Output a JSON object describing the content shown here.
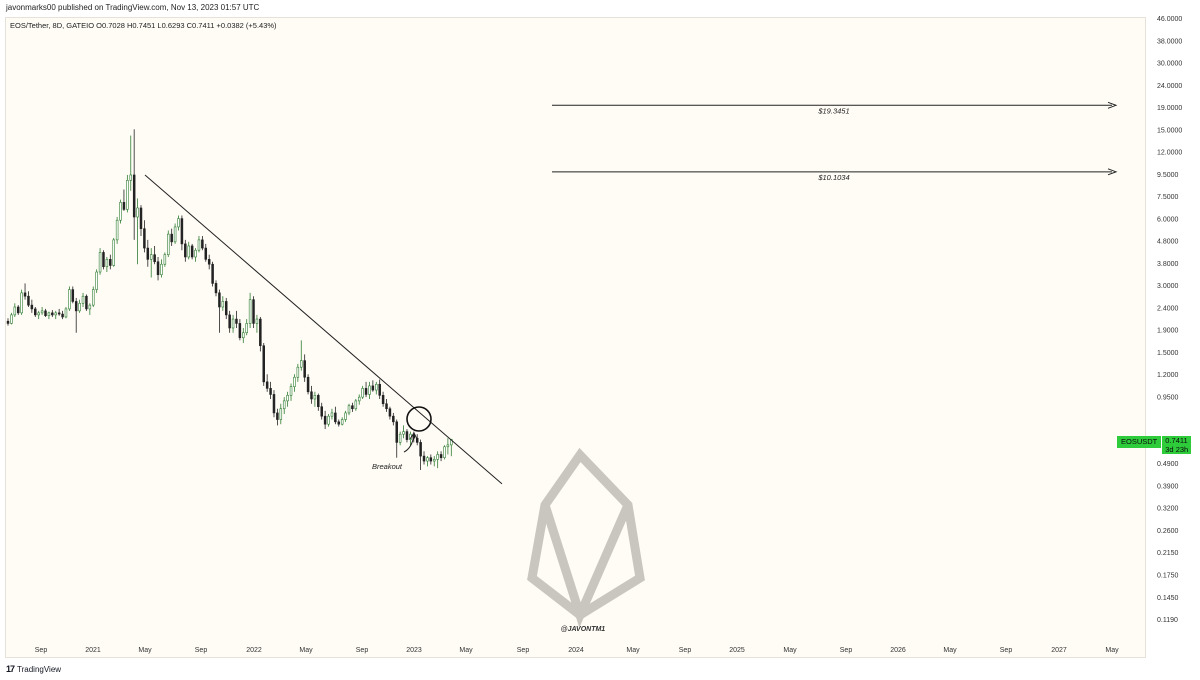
{
  "header": {
    "publisher": "javonmarks00 published on TradingView.com, Nov 13, 2023 01:57 UTC",
    "symbol_line": "EOS/Tether, 8D, GATEIO  O0.7028  H0.7451  L0.6293  C0.7411  +0.0382 (+5.43%)"
  },
  "footer": {
    "logo_glyph": "17",
    "brand": "TradingView"
  },
  "last_price_badge": {
    "symbol": "EOSUSDT",
    "price": "0.7411",
    "countdown": "3d 23h",
    "color": "#2ecc3a"
  },
  "chart_data": {
    "type": "candlestick",
    "scale": "log",
    "y_tick_labels": [
      "46.0000",
      "38.0000",
      "30.0000",
      "24.0000",
      "19.0000",
      "15.0000",
      "12.0000",
      "9.5000",
      "7.5000",
      "6.0000",
      "4.8000",
      "3.8000",
      "3.0000",
      "2.4000",
      "1.9000",
      "1.5000",
      "1.2000",
      "0.9500",
      "0.7411",
      "0.6100",
      "0.4900",
      "0.3900",
      "0.3200",
      "0.2600",
      "0.2150",
      "0.1750",
      "0.1450",
      "0.1190"
    ],
    "x_tick_labels": [
      "Sep",
      "2021",
      "May",
      "Sep",
      "2022",
      "May",
      "Sep",
      "2023",
      "May",
      "Sep",
      "2024",
      "May",
      "Sep",
      "2025",
      "May",
      "Sep",
      "2026",
      "May",
      "Sep",
      "2027",
      "May"
    ],
    "x_range": [
      "2020-08",
      "2027-06"
    ],
    "ohlc_8d": [
      [
        2.35,
        2.42,
        2.25,
        2.3
      ],
      [
        2.3,
        2.55,
        2.28,
        2.5
      ],
      [
        2.5,
        2.8,
        2.45,
        2.7
      ],
      [
        2.7,
        2.75,
        2.5,
        2.55
      ],
      [
        2.55,
        3.2,
        2.5,
        3.1
      ],
      [
        3.1,
        3.4,
        2.9,
        3.0
      ],
      [
        3.0,
        3.15,
        2.7,
        2.75
      ],
      [
        2.75,
        2.9,
        2.55,
        2.65
      ],
      [
        2.65,
        2.7,
        2.45,
        2.5
      ],
      [
        2.5,
        2.6,
        2.4,
        2.55
      ],
      [
        2.55,
        2.7,
        2.5,
        2.6
      ],
      [
        2.6,
        2.65,
        2.45,
        2.48
      ],
      [
        2.48,
        2.58,
        2.4,
        2.55
      ],
      [
        2.55,
        2.62,
        2.45,
        2.5
      ],
      [
        2.5,
        2.6,
        2.4,
        2.55
      ],
      [
        2.55,
        2.65,
        2.48,
        2.52
      ],
      [
        2.52,
        2.6,
        2.4,
        2.45
      ],
      [
        2.45,
        2.7,
        2.42,
        2.65
      ],
      [
        2.65,
        3.3,
        2.6,
        3.2
      ],
      [
        3.2,
        3.3,
        2.8,
        2.85
      ],
      [
        2.85,
        2.95,
        2.1,
        2.6
      ],
      [
        2.6,
        2.9,
        2.55,
        2.8
      ],
      [
        2.8,
        3.1,
        2.7,
        3.0
      ],
      [
        3.0,
        3.05,
        2.6,
        2.65
      ],
      [
        2.65,
        2.8,
        2.5,
        2.75
      ],
      [
        2.75,
        3.3,
        2.7,
        3.2
      ],
      [
        3.2,
        3.9,
        3.1,
        3.8
      ],
      [
        3.8,
        4.8,
        3.7,
        4.6
      ],
      [
        4.6,
        4.7,
        3.9,
        4.0
      ],
      [
        4.0,
        4.4,
        3.8,
        4.3
      ],
      [
        4.3,
        4.5,
        3.9,
        4.05
      ],
      [
        4.05,
        5.3,
        4.0,
        5.2
      ],
      [
        5.2,
        6.5,
        5.0,
        6.3
      ],
      [
        6.3,
        7.7,
        6.1,
        7.5
      ],
      [
        7.5,
        8.5,
        6.9,
        7.0
      ],
      [
        7.0,
        9.8,
        6.8,
        9.3
      ],
      [
        9.3,
        14.4,
        8.4,
        9.8
      ],
      [
        9.8,
        15.3,
        5.2,
        6.5
      ],
      [
        6.5,
        7.8,
        4.1,
        7.1
      ],
      [
        7.1,
        7.3,
        5.4,
        5.8
      ],
      [
        5.8,
        6.3,
        4.6,
        4.8
      ],
      [
        4.8,
        5.2,
        4.0,
        4.3
      ],
      [
        4.3,
        4.8,
        3.6,
        4.5
      ],
      [
        4.5,
        4.9,
        4.1,
        4.2
      ],
      [
        4.2,
        4.4,
        3.5,
        3.7
      ],
      [
        3.7,
        4.3,
        3.6,
        4.1
      ],
      [
        4.1,
        4.6,
        4.0,
        4.5
      ],
      [
        4.5,
        5.7,
        4.4,
        5.5
      ],
      [
        5.5,
        5.8,
        4.9,
        5.1
      ],
      [
        5.1,
        6.1,
        5.0,
        5.9
      ],
      [
        5.9,
        6.6,
        5.7,
        6.4
      ],
      [
        6.4,
        6.6,
        4.7,
        5.0
      ],
      [
        5.0,
        5.2,
        4.2,
        4.4
      ],
      [
        4.4,
        5.1,
        4.3,
        4.9
      ],
      [
        4.9,
        5.0,
        4.3,
        4.4
      ],
      [
        4.4,
        4.8,
        4.2,
        4.7
      ],
      [
        4.7,
        5.4,
        4.6,
        5.2
      ],
      [
        5.2,
        5.4,
        4.7,
        4.8
      ],
      [
        4.8,
        5.0,
        4.2,
        4.3
      ],
      [
        4.3,
        4.5,
        3.9,
        4.1
      ],
      [
        4.1,
        4.2,
        3.3,
        3.4
      ],
      [
        3.4,
        3.5,
        3.0,
        3.1
      ],
      [
        3.1,
        3.2,
        2.1,
        2.7
      ],
      [
        2.7,
        3.0,
        2.6,
        2.85
      ],
      [
        2.85,
        2.95,
        2.4,
        2.5
      ],
      [
        2.5,
        2.6,
        2.1,
        2.2
      ],
      [
        2.2,
        2.5,
        2.1,
        2.4
      ],
      [
        2.4,
        2.6,
        2.2,
        2.3
      ],
      [
        2.3,
        2.4,
        1.95,
        2.0
      ],
      [
        2.0,
        2.2,
        1.9,
        2.1
      ],
      [
        2.1,
        2.4,
        2.05,
        2.3
      ],
      [
        2.3,
        3.1,
        2.2,
        2.9
      ],
      [
        2.9,
        3.0,
        2.2,
        2.3
      ],
      [
        2.3,
        2.5,
        2.1,
        2.4
      ],
      [
        2.4,
        2.45,
        1.75,
        1.85
      ],
      [
        1.85,
        1.9,
        1.25,
        1.3
      ],
      [
        1.3,
        1.4,
        1.18,
        1.22
      ],
      [
        1.22,
        1.3,
        1.1,
        1.15
      ],
      [
        1.15,
        1.2,
        0.92,
        0.96
      ],
      [
        0.96,
        1.0,
        0.85,
        0.9
      ],
      [
        0.9,
        1.05,
        0.86,
        1.0
      ],
      [
        1.0,
        1.12,
        0.95,
        1.08
      ],
      [
        1.08,
        1.18,
        1.02,
        1.14
      ],
      [
        1.14,
        1.28,
        1.08,
        1.24
      ],
      [
        1.24,
        1.4,
        1.18,
        1.36
      ],
      [
        1.36,
        1.55,
        1.3,
        1.5
      ],
      [
        1.5,
        1.95,
        1.45,
        1.6
      ],
      [
        1.6,
        1.7,
        1.3,
        1.36
      ],
      [
        1.36,
        1.4,
        1.15,
        1.18
      ],
      [
        1.18,
        1.25,
        1.05,
        1.1
      ],
      [
        1.1,
        1.18,
        1.02,
        1.14
      ],
      [
        1.14,
        1.16,
        0.98,
        1.02
      ],
      [
        1.02,
        1.06,
        0.9,
        0.93
      ],
      [
        0.93,
        0.98,
        0.82,
        0.86
      ],
      [
        0.86,
        0.95,
        0.84,
        0.93
      ],
      [
        0.93,
        1.0,
        0.9,
        0.96
      ],
      [
        0.96,
        1.02,
        0.86,
        0.88
      ],
      [
        0.88,
        0.9,
        0.84,
        0.86
      ],
      [
        0.86,
        0.92,
        0.85,
        0.9
      ],
      [
        0.9,
        0.98,
        0.88,
        0.96
      ],
      [
        0.96,
        1.05,
        0.94,
        1.03
      ],
      [
        1.03,
        1.06,
        0.97,
        1.0
      ],
      [
        1.0,
        1.1,
        0.98,
        1.08
      ],
      [
        1.08,
        1.15,
        1.04,
        1.12
      ],
      [
        1.12,
        1.25,
        1.1,
        1.22
      ],
      [
        1.22,
        1.3,
        1.12,
        1.15
      ],
      [
        1.15,
        1.3,
        1.1,
        1.25
      ],
      [
        1.25,
        1.32,
        1.18,
        1.2
      ],
      [
        1.2,
        1.3,
        1.15,
        1.27
      ],
      [
        1.27,
        1.33,
        1.1,
        1.14
      ],
      [
        1.14,
        1.18,
        1.02,
        1.05
      ],
      [
        1.05,
        1.1,
        0.97,
        1.0
      ],
      [
        1.0,
        1.02,
        0.9,
        0.93
      ],
      [
        0.93,
        0.96,
        0.85,
        0.88
      ],
      [
        0.88,
        0.9,
        0.62,
        0.72
      ],
      [
        0.72,
        0.8,
        0.7,
        0.78
      ],
      [
        0.78,
        0.85,
        0.75,
        0.8
      ],
      [
        0.8,
        0.82,
        0.72,
        0.74
      ],
      [
        0.74,
        0.8,
        0.7,
        0.78
      ],
      [
        0.78,
        0.8,
        0.72,
        0.75
      ],
      [
        0.75,
        0.78,
        0.7,
        0.72
      ],
      [
        0.72,
        0.74,
        0.55,
        0.63
      ],
      [
        0.63,
        0.66,
        0.58,
        0.6
      ],
      [
        0.6,
        0.63,
        0.57,
        0.62
      ],
      [
        0.62,
        0.64,
        0.58,
        0.6
      ],
      [
        0.6,
        0.63,
        0.57,
        0.61
      ],
      [
        0.61,
        0.66,
        0.56,
        0.64
      ],
      [
        0.64,
        0.66,
        0.6,
        0.62
      ],
      [
        0.62,
        0.7,
        0.61,
        0.69
      ],
      [
        0.69,
        0.75,
        0.64,
        0.703
      ],
      [
        0.7028,
        0.7451,
        0.6293,
        0.7411
      ]
    ],
    "annotations": [
      {
        "type": "trendline",
        "from": {
          "date": "2021-05",
          "price": 9.8
        },
        "to": {
          "date": "2023-10",
          "price": 0.48
        }
      },
      {
        "type": "target_line",
        "price": 19.3451,
        "label": "$19.3451"
      },
      {
        "type": "target_line",
        "price": 10.1034,
        "label": "$10.1034"
      },
      {
        "type": "circle",
        "date": "2023-01",
        "price": 0.92
      },
      {
        "type": "text",
        "label": "Breakout"
      },
      {
        "type": "watermark",
        "label": "@JAVONTM1"
      }
    ],
    "colors": {
      "up": "#2f7d32",
      "down": "#222222",
      "background": "#fffcf6",
      "watermark": "#c9c6c0"
    }
  }
}
